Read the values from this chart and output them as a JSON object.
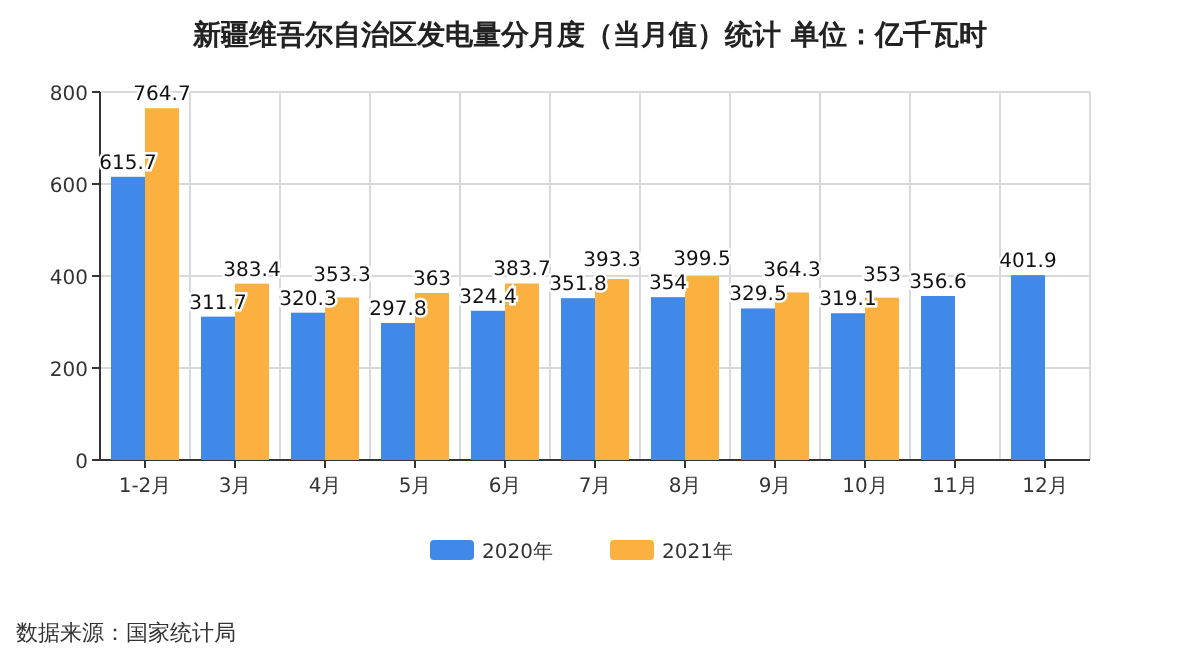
{
  "chart_data": {
    "type": "bar",
    "title": "新疆维吾尔自治区发电量分月度（当月值）统计  单位：亿千瓦时",
    "categories": [
      "1-2月",
      "3月",
      "4月",
      "5月",
      "6月",
      "7月",
      "8月",
      "9月",
      "10月",
      "11月",
      "12月"
    ],
    "series": [
      {
        "name": "2020年",
        "color": "#4189e8",
        "values": [
          615.7,
          311.7,
          320.3,
          297.8,
          324.4,
          351.8,
          354,
          329.5,
          319.1,
          356.6,
          401.9
        ]
      },
      {
        "name": "2021年",
        "color": "#fbb040",
        "values": [
          764.7,
          383.4,
          353.3,
          363,
          383.7,
          393.3,
          399.5,
          364.3,
          353,
          null,
          null
        ]
      }
    ],
    "ylim": [
      0,
      800
    ],
    "yticks": [
      0,
      200,
      400,
      600,
      800
    ],
    "grid": true,
    "legend": "bottom",
    "data_labels": true,
    "annotations": [
      "数据来源：国家统计局"
    ]
  }
}
